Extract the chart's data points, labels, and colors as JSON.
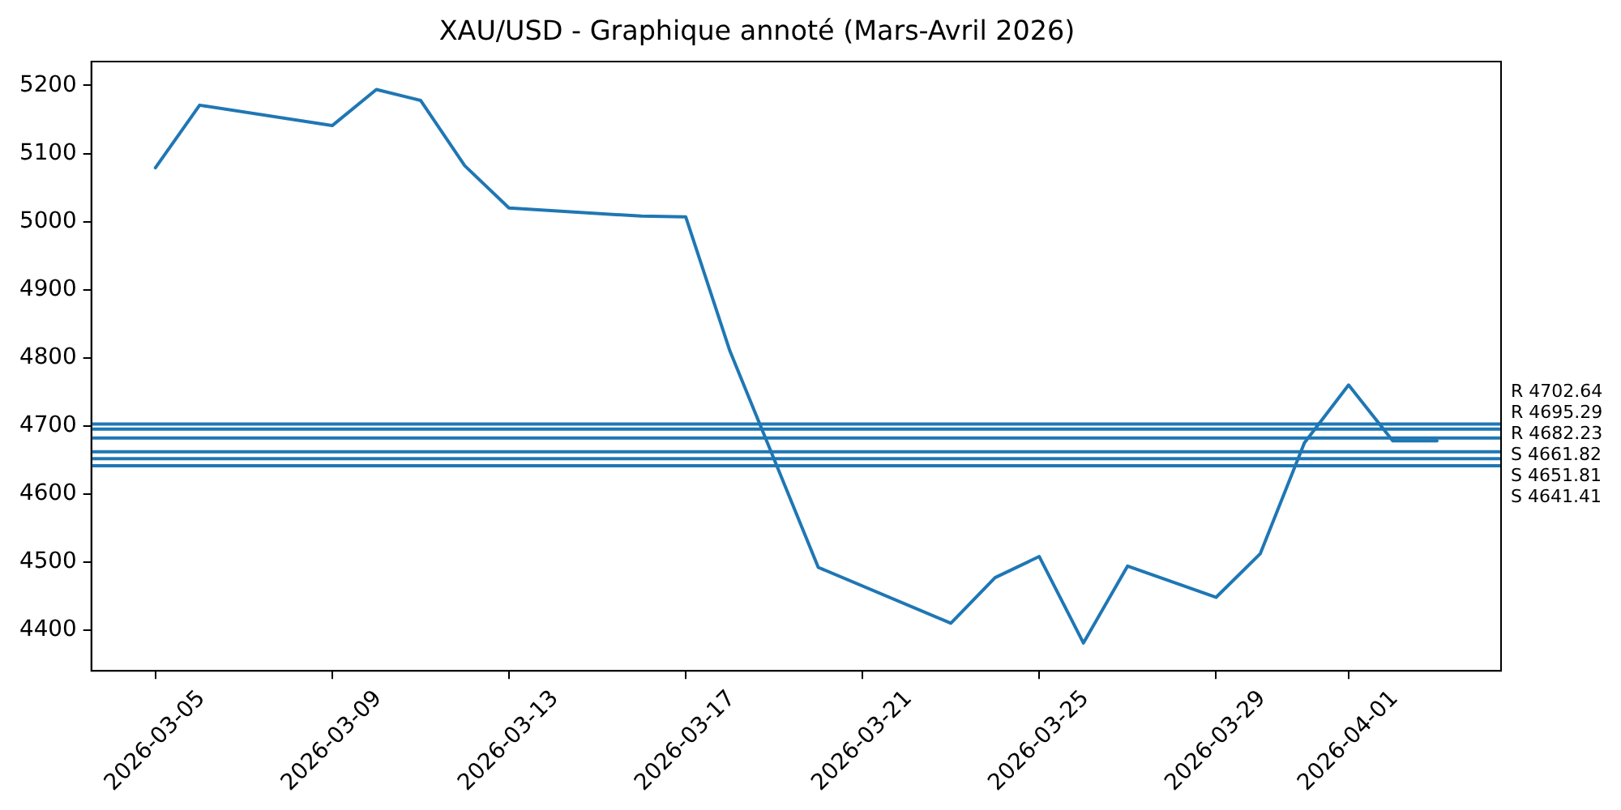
{
  "chart_data": {
    "type": "line",
    "title": "XAU/USD - Graphique annoté (Mars-Avril 2026)",
    "x": [
      "2026-03-05",
      "2026-03-06",
      "2026-03-09",
      "2026-03-10",
      "2026-03-11",
      "2026-03-12",
      "2026-03-13",
      "2026-03-16",
      "2026-03-17",
      "2026-03-18",
      "2026-03-20",
      "2026-03-23",
      "2026-03-24",
      "2026-03-25",
      "2026-03-26",
      "2026-03-27",
      "2026-03-29",
      "2026-03-30",
      "2026-03-31",
      "2026-04-01",
      "2026-04-02",
      "2026-04-03"
    ],
    "series": [
      {
        "color": "#1f77b4",
        "values": [
          5079,
          5171,
          5141,
          5194,
          5178,
          5082,
          5020,
          5008,
          5007,
          4810,
          4492,
          4410,
          4477,
          4508,
          4381,
          4494,
          4448,
          4512,
          4675,
          4760,
          4678,
          4678
        ]
      }
    ],
    "xlim": [
      "2026-03-03T13:12",
      "2026-04-04T10:48"
    ],
    "xticks": [
      "2026-03-05",
      "2026-03-09",
      "2026-03-13",
      "2026-03-17",
      "2026-03-21",
      "2026-03-25",
      "2026-03-29",
      "2026-04-01"
    ],
    "ylim": [
      4340,
      5235
    ],
    "yticks": [
      4400,
      4500,
      4600,
      4700,
      4800,
      4900,
      5000,
      5100,
      5200
    ],
    "ref_lines": [
      {
        "axis": "y",
        "value": 4702.64,
        "label": "R 4702.64",
        "color": "#1f77b4"
      },
      {
        "axis": "y",
        "value": 4695.29,
        "label": "R 4695.29",
        "color": "#1f77b4"
      },
      {
        "axis": "y",
        "value": 4682.23,
        "label": "R 4682.23",
        "color": "#1f77b4"
      },
      {
        "axis": "y",
        "value": 4661.82,
        "label": "S 4661.82",
        "color": "#1f77b4"
      },
      {
        "axis": "y",
        "value": 4651.81,
        "label": "S 4651.81",
        "color": "#1f77b4"
      },
      {
        "axis": "y",
        "value": 4641.41,
        "label": "S 4641.41",
        "color": "#1f77b4"
      }
    ],
    "grid": false,
    "marker": "none"
  }
}
